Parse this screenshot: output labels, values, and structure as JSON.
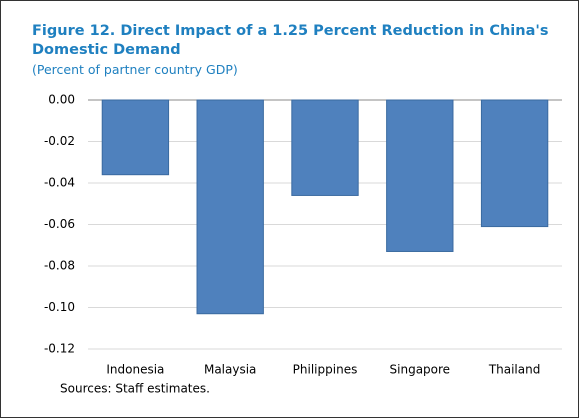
{
  "chart_data": {
    "type": "bar",
    "title": "Figure 12. Direct Impact of a 1.25 Percent Reduction in China's Domestic Demand",
    "subtitle": "(Percent of partner country GDP)",
    "source": "Sources: Staff estimates.",
    "categories": [
      "Indonesia",
      "Malaysia",
      "Philippines",
      "Singapore",
      "Thailand"
    ],
    "values": [
      -0.036,
      -0.103,
      -0.046,
      -0.073,
      -0.061
    ],
    "color": "#4f81bd",
    "ylim": [
      -0.12,
      0
    ],
    "yticks": [
      {
        "value": 0,
        "label": "0.00"
      },
      {
        "value": -0.02,
        "label": "-0.02"
      },
      {
        "value": -0.04,
        "label": "-0.04"
      },
      {
        "value": -0.06,
        "label": "-0.06"
      },
      {
        "value": -0.08,
        "label": "-0.08"
      },
      {
        "value": -0.1,
        "label": "-0.10"
      },
      {
        "value": -0.12,
        "label": "-0.12"
      }
    ],
    "grid": true
  }
}
